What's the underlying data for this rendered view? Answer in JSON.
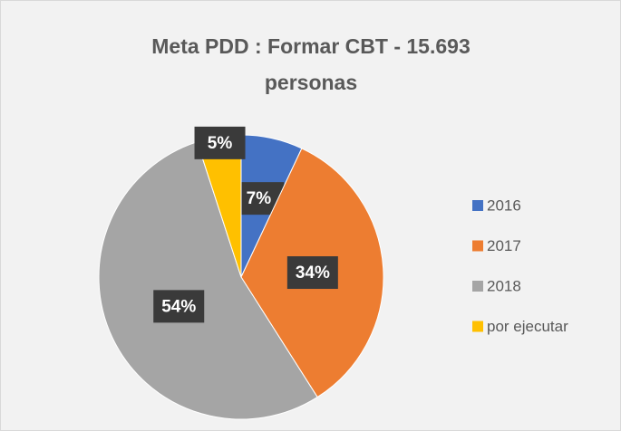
{
  "chart_data": {
    "type": "pie",
    "title": "Meta PDD : Formar CBT - 15.693 personas",
    "categories": [
      "2016",
      "2017",
      "2018",
      "por ejecutar"
    ],
    "values": [
      7,
      34,
      54,
      5
    ],
    "value_labels": [
      "7%",
      "34%",
      "54%",
      "5%"
    ],
    "colors": [
      "#4472c4",
      "#ed7d31",
      "#a5a5a5",
      "#ffc000"
    ],
    "legend": "right"
  }
}
